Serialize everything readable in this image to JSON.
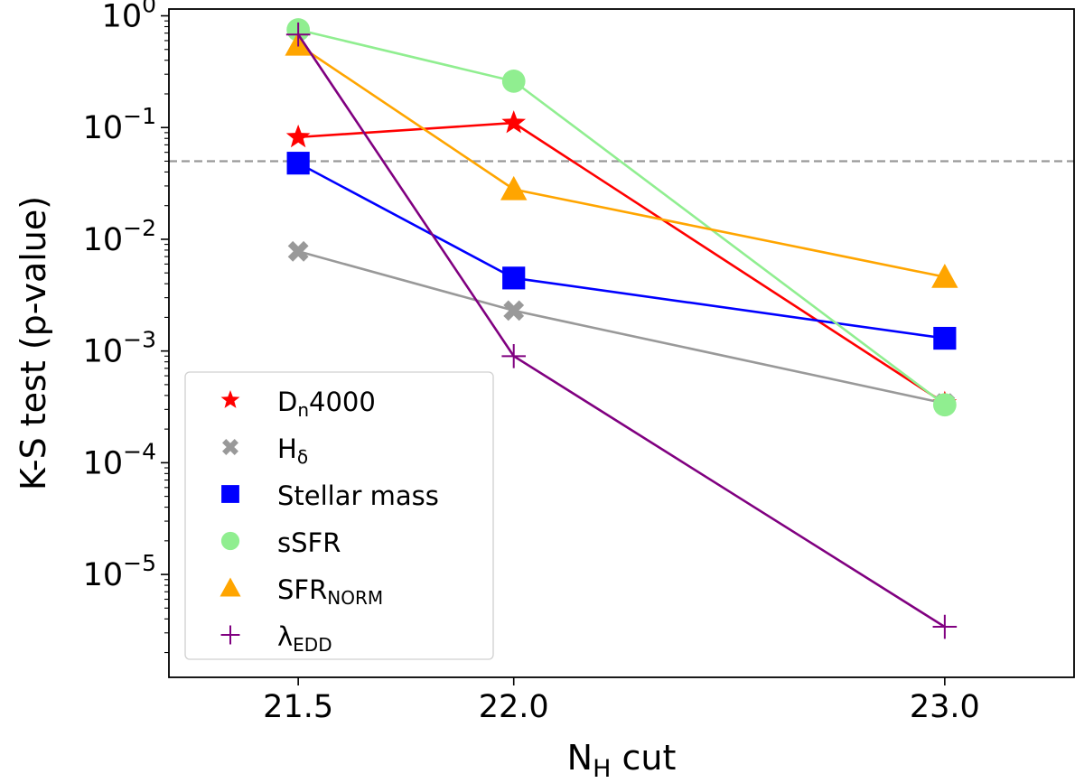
{
  "chart_data": {
    "type": "line",
    "yscale": "log",
    "xlabel": {
      "main": "N",
      "sub": "H",
      "rest": " cut"
    },
    "ylabel": "K-S test (p-value)",
    "xlim": [
      21.2,
      23.3
    ],
    "ylim": [
      1.2e-06,
      1.15
    ],
    "xticks": [
      21.5,
      22.0,
      23.0
    ],
    "xtick_labels": [
      "21.5",
      "22.0",
      "23.0"
    ],
    "yticks": [
      {
        "value": 1,
        "exp": "0"
      },
      {
        "value": 0.1,
        "exp": "−1"
      },
      {
        "value": 0.01,
        "exp": "−2"
      },
      {
        "value": 0.001,
        "exp": "−3"
      },
      {
        "value": 0.0001,
        "exp": "−4"
      },
      {
        "value": 1e-05,
        "exp": "−5"
      }
    ],
    "ytick_base": "10",
    "threshold": {
      "value": 0.05,
      "color": "#999999",
      "style": "dashed"
    },
    "legend_position": "lower-left",
    "series": [
      {
        "id": "dn4000",
        "label_main": "D",
        "label_sub": "n",
        "label_rest": "4000",
        "color": "#ff0000",
        "marker": "star",
        "x": [
          21.5,
          22.0,
          23.0
        ],
        "y": [
          0.082,
          0.11,
          0.00034
        ]
      },
      {
        "id": "hdelta",
        "label_main": "H",
        "label_sub": "δ",
        "label_rest": "",
        "color": "#999999",
        "marker": "x",
        "x": [
          21.5,
          22.0,
          23.0
        ],
        "y": [
          0.0078,
          0.0023,
          0.00034
        ]
      },
      {
        "id": "stellar-mass",
        "label_main": "Stellar mass",
        "label_sub": "",
        "label_rest": "",
        "color": "#0000ff",
        "marker": "square",
        "x": [
          21.5,
          22.0,
          23.0
        ],
        "y": [
          0.048,
          0.0045,
          0.0013
        ]
      },
      {
        "id": "ssfr",
        "label_main": "sSFR",
        "label_sub": "",
        "label_rest": "",
        "color": "#90ee90",
        "marker": "circle",
        "x": [
          21.5,
          22.0,
          23.0
        ],
        "y": [
          0.75,
          0.26,
          0.00033
        ]
      },
      {
        "id": "sfr-norm",
        "label_main": "SFR",
        "label_sub": "NORM",
        "label_rest": "",
        "color": "#ffa500",
        "marker": "triangle",
        "x": [
          21.5,
          22.0,
          23.0
        ],
        "y": [
          0.55,
          0.028,
          0.0046
        ]
      },
      {
        "id": "lambda-edd",
        "label_main": "λ",
        "label_sub": "EDD",
        "label_rest": "",
        "color": "#800080",
        "marker": "plus",
        "x": [
          21.5,
          22.0,
          23.0
        ],
        "y": [
          0.68,
          0.0009,
          3.4e-06
        ]
      }
    ]
  }
}
